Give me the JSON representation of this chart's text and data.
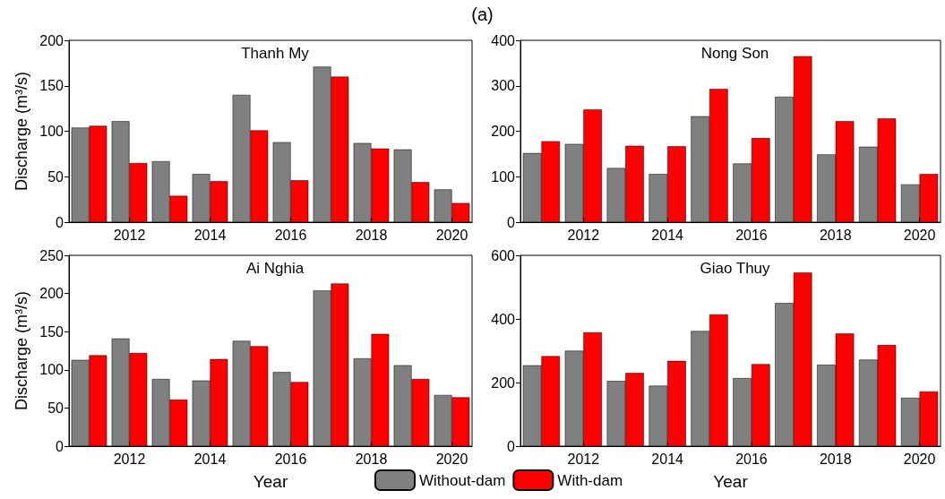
{
  "chart_data": [
    {
      "type": "bar",
      "title": "Thanh My",
      "ylabel": "Discharge (m³/s)",
      "annotations": [
        "(a)"
      ],
      "categories": [
        null,
        "2012",
        null,
        "2014",
        null,
        "2016",
        null,
        "2018",
        null,
        "2020"
      ],
      "ylim": [
        0,
        200
      ],
      "yticks": [
        0,
        50,
        100,
        150,
        200
      ],
      "grid": false,
      "series": [
        {
          "color": "#808080",
          "values": [
            104,
            111,
            67,
            53,
            140,
            88,
            171,
            87,
            80,
            36
          ]
        },
        {
          "color": "#ff0000",
          "values": [
            106,
            65,
            29,
            45,
            101,
            46,
            160,
            81,
            44,
            21
          ]
        }
      ]
    },
    {
      "type": "bar",
      "title": "Nong Son",
      "categories": [
        null,
        "2012",
        null,
        "2014",
        null,
        "2016",
        null,
        "2018",
        null,
        "2020"
      ],
      "ylim": [
        0,
        400
      ],
      "yticks": [
        0,
        100,
        200,
        300,
        400
      ],
      "grid": false,
      "series": [
        {
          "color": "#808080",
          "values": [
            152,
            172,
            119,
            106,
            233,
            129,
            276,
            149,
            166,
            83
          ]
        },
        {
          "color": "#ff0000",
          "values": [
            178,
            248,
            168,
            167,
            293,
            185,
            365,
            222,
            228,
            106
          ]
        }
      ]
    },
    {
      "type": "bar",
      "title": "Ai Nghia",
      "ylabel": "Discharge (m³/s)",
      "xlabel": "Year",
      "legend": "bottom",
      "categories": [
        null,
        "2012",
        null,
        "2014",
        null,
        "2016",
        null,
        "2018",
        null,
        "2020"
      ],
      "ylim": [
        0,
        250
      ],
      "yticks": [
        0,
        50,
        100,
        150,
        200,
        250
      ],
      "grid": false,
      "series": [
        {
          "name": "Without-dam",
          "color": "#808080",
          "values": [
            113,
            141,
            88,
            86,
            138,
            97,
            204,
            115,
            106,
            67
          ]
        },
        {
          "name": "With-dam",
          "color": "#ff0000",
          "values": [
            119,
            122,
            61,
            114,
            131,
            84,
            213,
            147,
            88,
            64
          ]
        }
      ]
    },
    {
      "type": "bar",
      "title": "Giao Thuy",
      "xlabel": "Year",
      "categories": [
        null,
        "2012",
        null,
        "2014",
        null,
        "2016",
        null,
        "2018",
        null,
        "2020"
      ],
      "ylim": [
        0,
        600
      ],
      "yticks": [
        0,
        200,
        400,
        600
      ],
      "grid": false,
      "series": [
        {
          "color": "#808080",
          "values": [
            254,
            300,
            205,
            190,
            362,
            214,
            450,
            256,
            272,
            152
          ]
        },
        {
          "color": "#ff0000",
          "values": [
            283,
            358,
            230,
            268,
            414,
            258,
            546,
            354,
            318,
            172
          ]
        }
      ]
    }
  ]
}
